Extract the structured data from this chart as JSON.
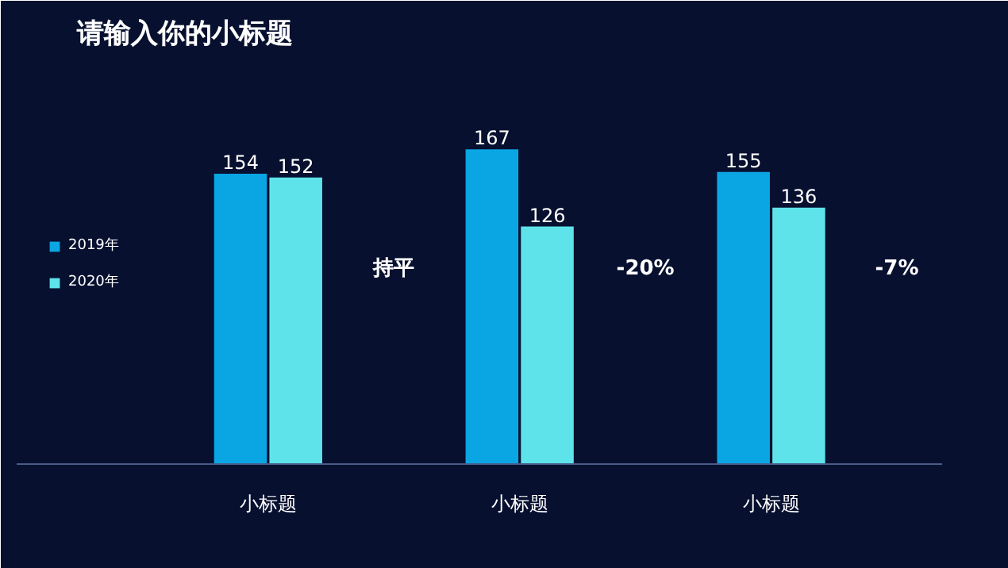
{
  "chart_data": {
    "type": "bar",
    "title": "请输入你的小标题",
    "categories": [
      "小标题",
      "小标题",
      "小标题"
    ],
    "series": [
      {
        "name": "2019年",
        "color": "#0aa6e4",
        "values": [
          154,
          167,
          155
        ]
      },
      {
        "name": "2020年",
        "color": "#5ee3ea",
        "values": [
          152,
          126,
          136
        ]
      }
    ],
    "data_labels": true,
    "legend": "left",
    "grid": false,
    "annotations": [
      "持平",
      "-20%",
      "-7%"
    ]
  }
}
